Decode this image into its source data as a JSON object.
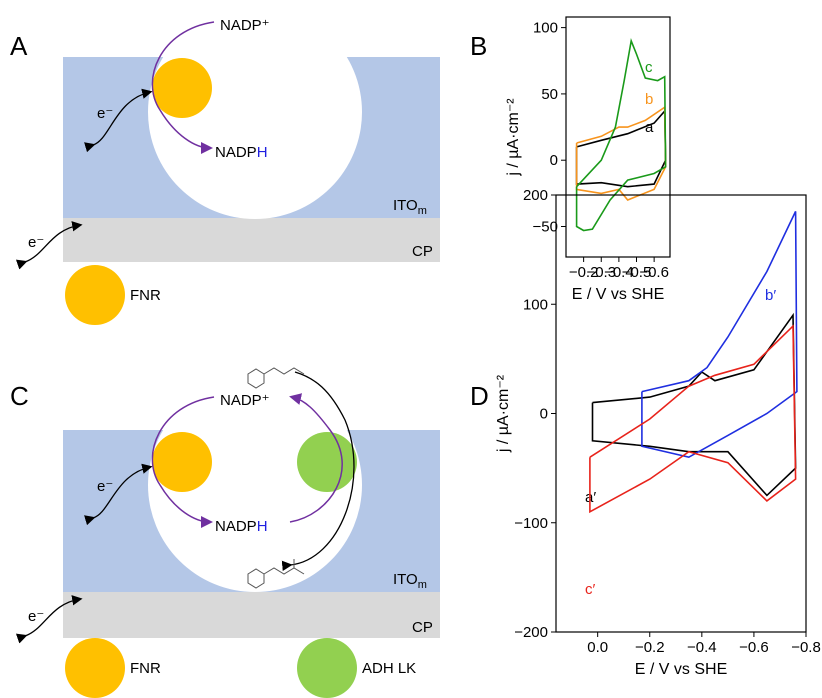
{
  "panel_labels": [
    "A",
    "B",
    "C",
    "D"
  ],
  "schematic_a": {
    "nadp_plus": "NADP⁺",
    "nadph": [
      "NADP",
      "H"
    ],
    "electron_1": "e⁻",
    "electron_2": "e⁻",
    "ito": [
      "ITO",
      "m"
    ],
    "cp": "CP",
    "fnr": "FNR"
  },
  "schematic_c": {
    "nadp_plus": "NADP⁺",
    "nadph": [
      "NADP",
      "H"
    ],
    "electron_1": "e⁻",
    "electron_2": "e⁻",
    "ito": [
      "ITO",
      "m"
    ],
    "cp": "CP",
    "fnr": "FNR",
    "adh": "ADH LK"
  },
  "chart_data": [
    {
      "type": "line",
      "xlabel": "E / V vs SHE",
      "ylabel": "j / µA·cm⁻²",
      "xlim": [
        -0.1,
        -0.69
      ],
      "ylim": [
        -73,
        108
      ],
      "xticks": [
        {
          "value": -0.2,
          "label": "−0.2"
        },
        {
          "value": -0.3,
          "label": "−0.3"
        },
        {
          "value": -0.4,
          "label": "−0.4"
        },
        {
          "value": -0.5,
          "label": "−0.5"
        },
        {
          "value": -0.6,
          "label": "−0.6"
        }
      ],
      "yticks": [
        {
          "value": -50,
          "label": "−50"
        },
        0,
        50,
        100
      ],
      "series": [
        {
          "name": "a",
          "color": "#000000",
          "x": [
            -0.16,
            -0.3,
            -0.45,
            -0.6,
            -0.66,
            -0.665,
            -0.6,
            -0.45,
            -0.3,
            -0.16,
            -0.16
          ],
          "y": [
            10,
            15,
            20,
            28,
            37,
            0,
            -18,
            -20,
            -17,
            -18,
            10
          ]
        },
        {
          "name": "b",
          "color": "#f7941d",
          "x": [
            -0.16,
            -0.3,
            -0.4,
            -0.45,
            -0.55,
            -0.66,
            -0.665,
            -0.6,
            -0.45,
            -0.4,
            -0.3,
            -0.16,
            -0.16
          ],
          "y": [
            13,
            18,
            25,
            25,
            30,
            40,
            -5,
            -22,
            -30,
            -22,
            -25,
            -22,
            13
          ]
        },
        {
          "name": "c",
          "color": "#1a9a1a",
          "x": [
            -0.16,
            -0.3,
            -0.38,
            -0.43,
            -0.47,
            -0.5,
            -0.55,
            -0.62,
            -0.66,
            -0.665,
            -0.6,
            -0.45,
            -0.35,
            -0.25,
            -0.2,
            -0.16,
            -0.16
          ],
          "y": [
            -20,
            0,
            25,
            60,
            90,
            80,
            62,
            60,
            63,
            -5,
            -10,
            -15,
            -30,
            -52,
            -53,
            -50,
            -20
          ]
        }
      ]
    },
    {
      "type": "line",
      "xlabel": "E / V vs SHE",
      "ylabel": "j / µA·cm⁻²",
      "xlim": [
        0.16,
        -0.8
      ],
      "ylim": [
        -200,
        200
      ],
      "xticks": [
        {
          "value": 0,
          "label": "0.0"
        },
        {
          "value": -0.2,
          "label": "−0.2"
        },
        {
          "value": -0.4,
          "label": "−0.4"
        },
        {
          "value": -0.6,
          "label": "−0.6"
        },
        {
          "value": -0.8,
          "label": "−0.8"
        }
      ],
      "yticks": [
        {
          "value": -200,
          "label": "−200"
        },
        {
          "value": -100,
          "label": "−100"
        },
        0,
        100,
        200
      ],
      "series": [
        {
          "name": "a′",
          "color": "#000000",
          "x": [
            0.02,
            -0.2,
            -0.35,
            -0.4,
            -0.45,
            -0.6,
            -0.75,
            -0.76,
            -0.65,
            -0.5,
            -0.35,
            -0.2,
            0.02,
            0.02
          ],
          "y": [
            10,
            15,
            25,
            38,
            30,
            40,
            90,
            -50,
            -75,
            -35,
            -35,
            -30,
            -25,
            10
          ]
        },
        {
          "name": "b′",
          "color": "#1f2fe0",
          "x": [
            -0.17,
            -0.35,
            -0.42,
            -0.5,
            -0.65,
            -0.76,
            -0.765,
            -0.65,
            -0.5,
            -0.35,
            -0.17,
            -0.17
          ],
          "y": [
            20,
            30,
            42,
            70,
            130,
            185,
            20,
            0,
            -20,
            -40,
            -30,
            20
          ]
        },
        {
          "name": "c′",
          "color": "#e8231b",
          "x": [
            0.03,
            -0.2,
            -0.35,
            -0.45,
            -0.6,
            -0.75,
            -0.76,
            -0.65,
            -0.5,
            -0.35,
            -0.2,
            0.03,
            0.03
          ],
          "y": [
            -40,
            -5,
            25,
            35,
            45,
            80,
            -60,
            -80,
            -45,
            -35,
            -60,
            -90,
            -40
          ]
        }
      ]
    }
  ]
}
